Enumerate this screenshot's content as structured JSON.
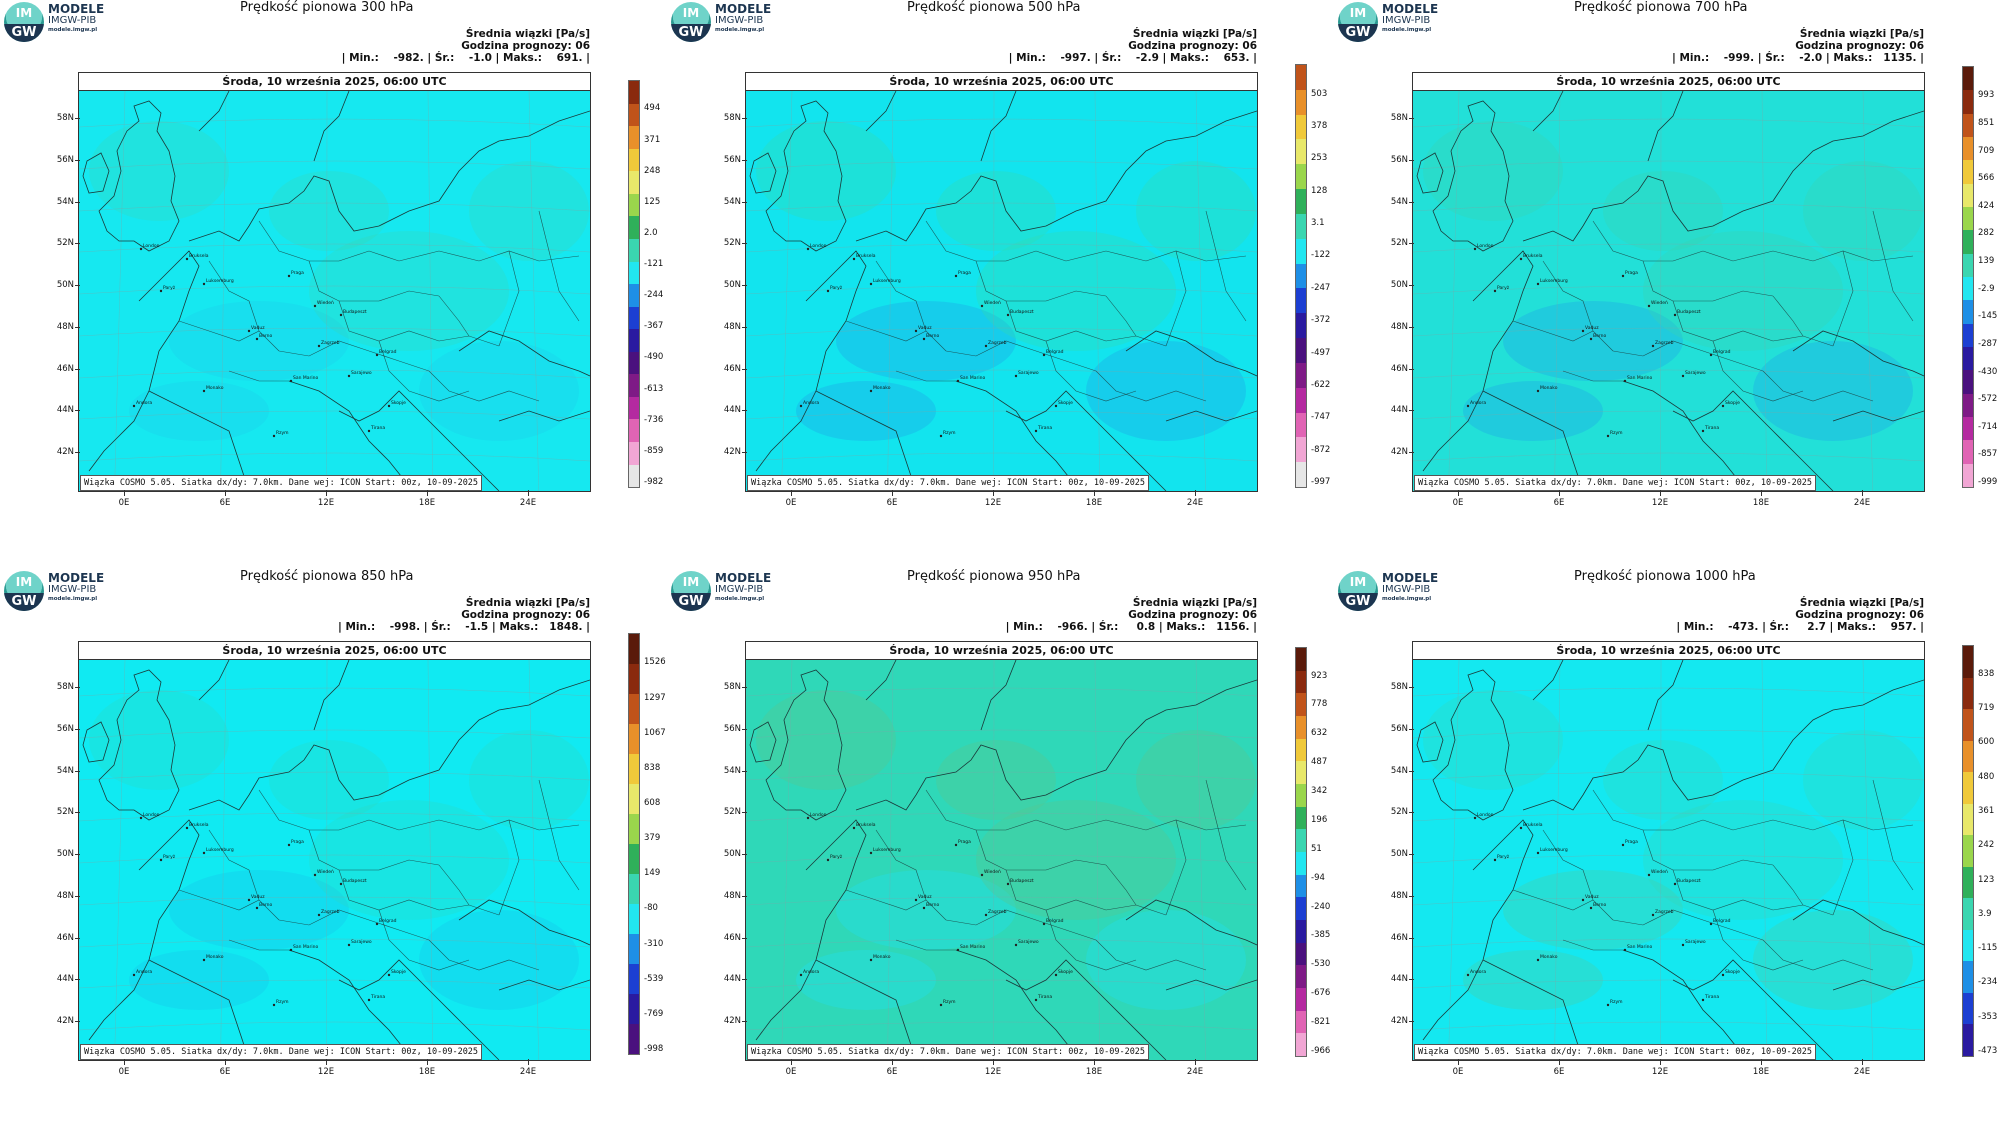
{
  "logo": {
    "line1": "MODELE",
    "line2": "IMGW-PIB",
    "line3": "modele.imgw.pl",
    "badge_top": "IM",
    "badge_bottom": "GW"
  },
  "common": {
    "date_header": "Środa, 10 września 2025, 06:00 UTC",
    "footer": "Wiązka COSMO 5.05. Siatka dx/dy: 7.0km. Dane wej: ICON Start: 00z, 10-09-2025",
    "lat_labels": [
      "58N",
      "56N",
      "54N",
      "52N",
      "50N",
      "48N",
      "46N",
      "44N",
      "42N"
    ],
    "lon_labels": [
      "0E",
      "6E",
      "12E",
      "18E",
      "24E"
    ],
    "cities": [
      "London",
      "Bruksela",
      "Luksemburg",
      "Paryż",
      "Praga",
      "Wiedeń",
      "Budapeszt",
      "Vaduz",
      "Berno",
      "Zagrzeb",
      "Belgrad",
      "Sarajewo",
      "San Marino",
      "Monako",
      "Andora",
      "Skopje",
      "Tirana",
      "Rzym"
    ]
  },
  "panels": [
    {
      "title": "Prędkość pionowa 300 hPa",
      "info_line1": "Średnia wiązki [Pa/s]",
      "info_line2": "Godzina prognozy: 06",
      "info_line3": "| Min.:    -982. | Śr.:    -1.0 | Maks.:    691. |",
      "colorbar_labels": [
        "494",
        "371",
        "248",
        "125",
        "2.0",
        "-121",
        "-244",
        "-367",
        "-490",
        "-613",
        "-736",
        "-859",
        "-982"
      ],
      "colorbar_colors": [
        "#8a2a0e",
        "#c0531a",
        "#e8902a",
        "#f0c93a",
        "#e8e86a",
        "#9ad64c",
        "#2fb05a",
        "#3ad6b0",
        "#22e6f0",
        "#1e8fe6",
        "#1c3fd2",
        "#2a1aa0",
        "#4a117e",
        "#7e1a86",
        "#b42aa0",
        "#e064b4",
        "#f1a6d4",
        "#e6e6e6"
      ]
    },
    {
      "title": "Prędkość pionowa 500 hPa",
      "info_line1": "Średnia wiązki [Pa/s]",
      "info_line2": "Godzina prognozy: 06",
      "info_line3": "| Min.:    -997. | Śr.:    -2.9 | Maks.:    653. |",
      "colorbar_labels": [
        "503",
        "378",
        "253",
        "128",
        "3.1",
        "-122",
        "-247",
        "-372",
        "-497",
        "-622",
        "-747",
        "-872",
        "-997"
      ],
      "colorbar_colors": [
        "#c0531a",
        "#e8902a",
        "#f0c93a",
        "#e8e86a",
        "#9ad64c",
        "#2fb05a",
        "#3ad6b0",
        "#22e6f0",
        "#1e8fe6",
        "#1c3fd2",
        "#2a1aa0",
        "#4a117e",
        "#7e1a86",
        "#b42aa0",
        "#e064b4",
        "#f1a6d4",
        "#e6e6e6"
      ]
    },
    {
      "title": "Prędkość pionowa 700 hPa",
      "info_line1": "Średnia wiązki [Pa/s]",
      "info_line2": "Godzina prognozy: 06",
      "info_line3": "| Min.:    -999. | Śr.:    -2.0 | Maks.:   1135. |",
      "colorbar_labels": [
        "993",
        "851",
        "709",
        "566",
        "424",
        "282",
        "139",
        "-2.9",
        "-145",
        "-287",
        "-430",
        "-572",
        "-714",
        "-857",
        "-999"
      ],
      "colorbar_colors": [
        "#5a1a0a",
        "#8a2a0e",
        "#c0531a",
        "#e8902a",
        "#f0c93a",
        "#e8e86a",
        "#9ad64c",
        "#2fb05a",
        "#3ad6b0",
        "#22e6f0",
        "#1e8fe6",
        "#1c3fd2",
        "#2a1aa0",
        "#4a117e",
        "#7e1a86",
        "#b42aa0",
        "#e064b4",
        "#f1a6d4"
      ]
    },
    {
      "title": "Prędkość pionowa 850 hPa",
      "info_line1": "Średnia wiązki [Pa/s]",
      "info_line2": "Godzina prognozy: 06",
      "info_line3": "| Min.:    -998. | Śr.:    -1.5 | Maks.:   1848. |",
      "colorbar_labels": [
        "1526",
        "1297",
        "1067",
        "838",
        "608",
        "379",
        "149",
        "-80",
        "-310",
        "-539",
        "-769",
        "-998"
      ],
      "colorbar_colors": [
        "#5a1a0a",
        "#8a2a0e",
        "#c0531a",
        "#e8902a",
        "#f0c93a",
        "#e8e86a",
        "#9ad64c",
        "#2fb05a",
        "#3ad6b0",
        "#22e6f0",
        "#1e8fe6",
        "#1c3fd2",
        "#2a1aa0",
        "#4a117e"
      ]
    },
    {
      "title": "Prędkość pionowa 950 hPa",
      "info_line1": "Średnia wiązki [Pa/s]",
      "info_line2": "Godzina prognozy: 06",
      "info_line3": "| Min.:    -966. | Śr.:     0.8 | Maks.:   1156. |",
      "colorbar_labels": [
        "923",
        "778",
        "632",
        "487",
        "342",
        "196",
        "51",
        "-94",
        "-240",
        "-385",
        "-530",
        "-676",
        "-821",
        "-966"
      ],
      "colorbar_colors": [
        "#5a1a0a",
        "#8a2a0e",
        "#c0531a",
        "#e8902a",
        "#f0c93a",
        "#e8e86a",
        "#9ad64c",
        "#2fb05a",
        "#3ad6b0",
        "#22e6f0",
        "#1e8fe6",
        "#1c3fd2",
        "#2a1aa0",
        "#4a117e",
        "#7e1a86",
        "#b42aa0",
        "#e064b4",
        "#f1a6d4"
      ]
    },
    {
      "title": "Prędkość pionowa 1000 hPa",
      "info_line1": "Średnia wiązki [Pa/s]",
      "info_line2": "Godzina prognozy: 06",
      "info_line3": "| Min.:    -473. | Śr.:     2.7 | Maks.:    957. |",
      "colorbar_labels": [
        "838",
        "719",
        "600",
        "480",
        "361",
        "242",
        "123",
        "3.9",
        "-115",
        "-234",
        "-353",
        "-473"
      ],
      "colorbar_colors": [
        "#5a1a0a",
        "#8a2a0e",
        "#c0531a",
        "#e8902a",
        "#f0c93a",
        "#e8e86a",
        "#9ad64c",
        "#2fb05a",
        "#3ad6b0",
        "#22e6f0",
        "#1e8fe6",
        "#1c3fd2",
        "#2a1aa0"
      ]
    }
  ]
}
